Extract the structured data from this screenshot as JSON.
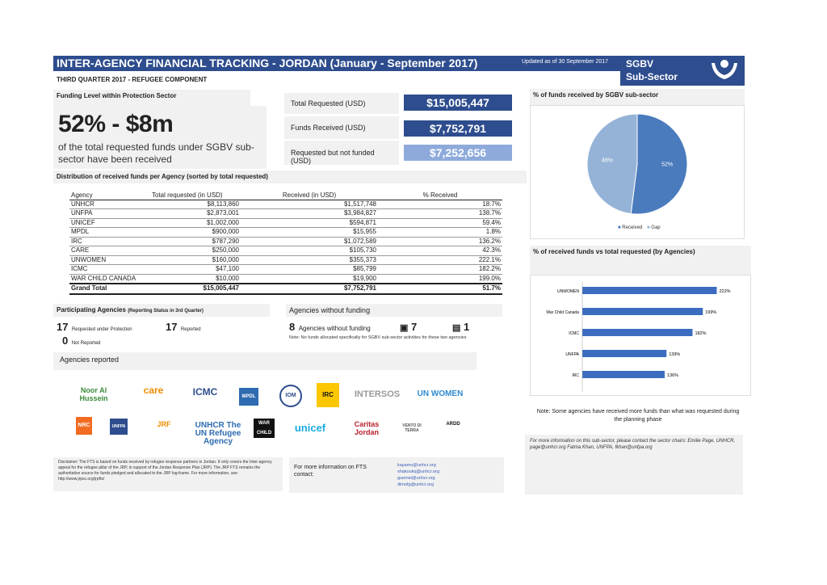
{
  "header": {
    "title": "INTER-AGENCY FINANCIAL TRACKING - JORDAN (January - September 2017)",
    "updated": "Updated as of 30 September 2017",
    "sector_line1": "SGBV",
    "sector_line2": "Sub-Sector",
    "subtitle": "THIRD QUARTER 2017 - REFUGEE COMPONENT"
  },
  "funding_level": {
    "label": "Funding Level within Protection Sector",
    "headline": "52% - $8m",
    "description": "of the total requested funds under SGBV sub-sector have been received"
  },
  "kpis": [
    {
      "label": "Total Requested (USD)",
      "value": "$15,005,447",
      "color": "#2e4d8e"
    },
    {
      "label": "Funds Received (USD)",
      "value": "$7,752,791",
      "color": "#2e4d8e"
    },
    {
      "label": "Requested but not funded (USD)",
      "value": "$7,252,656",
      "color": "#8eaadb"
    }
  ],
  "distribution": {
    "title": "Distribution of received funds per Agency (sorted by total requested)",
    "columns": [
      "Agency",
      "Total requested (in USD)",
      "Received (in USD)",
      "% Received"
    ],
    "rows": [
      [
        "UNHCR",
        "$8,113,860",
        "$1,517,748",
        "18.7%"
      ],
      [
        "UNFPA",
        "$2,873,001",
        "$3,984,827",
        "138.7%"
      ],
      [
        "UNICEF",
        "$1,002,000",
        "$594,871",
        "59.4%"
      ],
      [
        "MPDL",
        "$900,000",
        "$15,955",
        "1.8%"
      ],
      [
        "IRC",
        "$787,290",
        "$1,072,589",
        "136.2%"
      ],
      [
        "CARE",
        "$250,000",
        "$105,730",
        "42.3%"
      ],
      [
        "UNWOMEN",
        "$160,000",
        "$355,373",
        "222.1%"
      ],
      [
        "ICMC",
        "$47,100",
        "$85,799",
        "182.2%"
      ],
      [
        "WAR CHILD CANADA",
        "$10,000",
        "$19,900",
        "199.0%"
      ]
    ],
    "total": [
      "Grand Total",
      "$15,005,447",
      "$7,752,791",
      "51.7%"
    ]
  },
  "participating": {
    "title": "Participating Agencies",
    "title_note": "(Reporting Status in 3rd Quarter)",
    "requested_count": "17",
    "requested_label": "Requested under Protection",
    "reported_count": "17",
    "reported_label": "Reported",
    "not_reported_count": "0",
    "not_reported_label": "Not Reported"
  },
  "without_funding": {
    "title": "Agencies without funding",
    "count": "8",
    "label": "Agencies without funding",
    "icon1_count": "7",
    "icon2_count": "1",
    "note": "Note: No funds allocated specifically for SGBV sub-sector activities for these two agencies"
  },
  "agencies_reported": {
    "title": "Agencies reported",
    "logos": [
      "Noor Al Hussein",
      "care",
      "ICMC",
      "MPDL",
      "IOM",
      "IRC",
      "INTERSOS",
      "UN WOMEN",
      "NRC",
      "UNFPA",
      "JRF",
      "UNHCR The UN Refugee Agency",
      "WAR CHILD",
      "unicef",
      "Caritas Jordan",
      "VENTO DI TERRA",
      "ARDD"
    ]
  },
  "disclaimer": "Disclaimer: The FTS is based on funds received by refugee response partners in Jordan. It only covers the Inter-agency appeal for the refugee pillar of the JRP, in support of the Jordan Response Plan (JRP). The JRP FTS remains the authoritative source for funds pledged and allocated to the JRP log-frame. For more information, see http://www.jrpsc.org/jrpfts/",
  "fts_contact": {
    "label": "For more information on FTS contact:",
    "emails": [
      "kayamo@unhcr.org",
      "shakoukq@unhcr.org",
      "guemei@unhcr.org",
      "dimofg@unhcr.org"
    ]
  },
  "pie": {
    "title": "% of funds received by SGBV sub-sector",
    "legend": [
      "Received",
      "Gap"
    ]
  },
  "bars": {
    "title": "% of received funds vs total requested (by Agencies)"
  },
  "note": "Note: Some agencies have received more funds than what was requested during the planning phase",
  "contact_info": "For more information on this sub-sector, please contact the sector chairs: Emilie Page, UNHCR, page@unhcr.org Fatma Khan, UNFPA, fkhan@unfpa.org",
  "chart_data": [
    {
      "type": "pie",
      "title": "% of funds received by SGBV sub-sector",
      "labels": [
        "Received",
        "Gap"
      ],
      "values": [
        52,
        48
      ],
      "colors": [
        "#4a7bbd",
        "#95b3d7"
      ]
    },
    {
      "type": "bar",
      "orientation": "horizontal",
      "title": "% of received funds vs total requested (by Agencies)",
      "categories": [
        "UNWOMEN",
        "War Child Canada",
        "ICMC",
        "UNFPA",
        "IRC"
      ],
      "values": [
        222,
        199,
        182,
        139,
        136
      ],
      "value_labels": [
        "222%",
        "199%",
        "182%",
        "139%",
        "136%"
      ],
      "xlim": [
        0,
        240
      ]
    }
  ]
}
